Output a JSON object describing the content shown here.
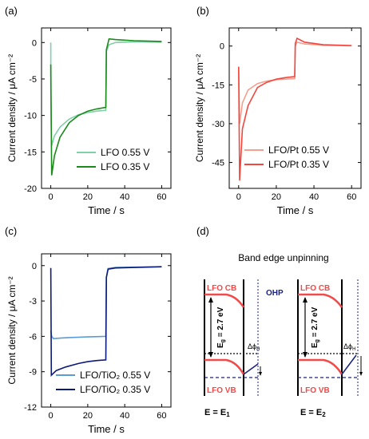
{
  "panel_letters": [
    "(a)",
    "(b)",
    "(c)",
    "(d)"
  ],
  "chart_data": [
    {
      "type": "line",
      "letter": "(a)",
      "xlabel": "Time / s",
      "ylabel": "Current density / μA cm⁻²",
      "xlim": [
        -5,
        65
      ],
      "ylim": [
        -20,
        2
      ],
      "xticks": [
        0,
        20,
        40,
        60
      ],
      "yticks": [
        0,
        -5,
        -10,
        -15,
        -20
      ],
      "legend_position": "bottom-right",
      "series": [
        {
          "name": "LFO 0.55 V",
          "color": "#7fcfa8",
          "points": [
            [
              0,
              0
            ],
            [
              0,
              -6
            ],
            [
              0.4,
              -14.2
            ],
            [
              2,
              -12.8
            ],
            [
              5,
              -11.6
            ],
            [
              10,
              -10.5
            ],
            [
              15,
              -9.9
            ],
            [
              20,
              -9.6
            ],
            [
              25,
              -9.4
            ],
            [
              29.8,
              -9.3
            ],
            [
              30.1,
              -1.2
            ],
            [
              31.5,
              -0.3
            ],
            [
              35,
              0
            ],
            [
              45,
              0.1
            ],
            [
              60,
              0.05
            ]
          ]
        },
        {
          "name": "LFO 0.35 V",
          "color": "#1a8a1a",
          "points": [
            [
              0,
              -3
            ],
            [
              0.5,
              -18.2
            ],
            [
              2,
              -15.5
            ],
            [
              5,
              -13
            ],
            [
              10,
              -11
            ],
            [
              15,
              -10
            ],
            [
              20,
              -9.4
            ],
            [
              25,
              -9.1
            ],
            [
              29.8,
              -8.9
            ],
            [
              30.1,
              -1
            ],
            [
              31.5,
              0.5
            ],
            [
              35,
              0.4
            ],
            [
              45,
              0.25
            ],
            [
              60,
              0.15
            ]
          ]
        }
      ]
    },
    {
      "type": "line",
      "letter": "(b)",
      "xlabel": "Time / s",
      "ylabel": "Current density / μA cm⁻²",
      "xlim": [
        -5,
        65
      ],
      "ylim": [
        -55,
        7
      ],
      "xticks": [
        0,
        20,
        40,
        60
      ],
      "yticks": [
        0,
        -15,
        -30,
        -45
      ],
      "legend_position": "bottom-right",
      "series": [
        {
          "name": "LFO/Pt 0.55 V",
          "color": "#f4a090",
          "points": [
            [
              0,
              -8
            ],
            [
              0.5,
              -30
            ],
            [
              2,
              -22
            ],
            [
              5,
              -17
            ],
            [
              10,
              -14.5
            ],
            [
              15,
              -13.5
            ],
            [
              20,
              -13
            ],
            [
              25,
              -12.8
            ],
            [
              29.8,
              -12.6
            ],
            [
              30.1,
              0
            ],
            [
              31,
              1.5
            ],
            [
              35,
              0.8
            ],
            [
              45,
              0.3
            ],
            [
              60,
              0.1
            ]
          ]
        },
        {
          "name": "LFO/Pt 0.35 V",
          "color": "#f0483f",
          "points": [
            [
              0,
              -8
            ],
            [
              0.5,
              -52
            ],
            [
              2,
              -32
            ],
            [
              5,
              -23
            ],
            [
              10,
              -16
            ],
            [
              15,
              -14
            ],
            [
              20,
              -12.8
            ],
            [
              25,
              -12.2
            ],
            [
              29.8,
              -11.8
            ],
            [
              30.1,
              1
            ],
            [
              31,
              3
            ],
            [
              35,
              1.5
            ],
            [
              45,
              0.5
            ],
            [
              60,
              0.2
            ]
          ]
        }
      ]
    },
    {
      "type": "line",
      "letter": "(c)",
      "xlabel": "Time / s",
      "ylabel": "Current density / μA cm⁻²",
      "xlim": [
        -5,
        65
      ],
      "ylim": [
        -12,
        1
      ],
      "xticks": [
        0,
        20,
        40,
        60
      ],
      "yticks": [
        0,
        -3,
        -6,
        -9,
        -12
      ],
      "legend_position": "bottom-right",
      "series": [
        {
          "name": "LFO/TiO₂ 0.55 V",
          "color": "#5a9bd5",
          "points": [
            [
              0,
              -5.5
            ],
            [
              0.5,
              -6
            ],
            [
              1.5,
              -6.2
            ],
            [
              5,
              -6.15
            ],
            [
              10,
              -6.1
            ],
            [
              20,
              -6.05
            ],
            [
              29.8,
              -6
            ],
            [
              30.1,
              -1
            ],
            [
              31,
              -0.25
            ],
            [
              35,
              -0.15
            ],
            [
              60,
              -0.1
            ]
          ]
        },
        {
          "name": "LFO/TiO₂ 0.35 V",
          "color": "#0c1a78",
          "points": [
            [
              0,
              -0.2
            ],
            [
              0.3,
              -9.3
            ],
            [
              1,
              -9.2
            ],
            [
              3,
              -8.9
            ],
            [
              8,
              -8.6
            ],
            [
              15,
              -8.3
            ],
            [
              20,
              -8.15
            ],
            [
              25,
              -8.05
            ],
            [
              29.8,
              -8
            ],
            [
              30.1,
              -1
            ],
            [
              31,
              -0.3
            ],
            [
              35,
              -0.2
            ],
            [
              60,
              -0.1
            ]
          ]
        }
      ]
    }
  ],
  "diagram": {
    "letter": "(d)",
    "title": "Band edge unpinning",
    "ohp_label": "OHP",
    "left": {
      "cb": "LFO CB",
      "vb": "LFO VB",
      "eg": "E",
      "eg_sub": "g",
      "eg_value": " = 2.7 eV",
      "phi": "Δϕ",
      "phi_sub": "H",
      "e_label": "E = E",
      "e_sub": "1"
    },
    "right": {
      "cb": "LFO CB",
      "vb": "LFO VB",
      "eg": "E",
      "eg_sub": "g",
      "eg_value": " = 2.7 eV",
      "phi": "Δϕ",
      "phi_sub": "H",
      "e_label": "E = E",
      "e_sub": "2"
    },
    "colors": {
      "band": "#f04a4a",
      "ohp": "#1a237e",
      "fermi": "#1a237e"
    }
  }
}
